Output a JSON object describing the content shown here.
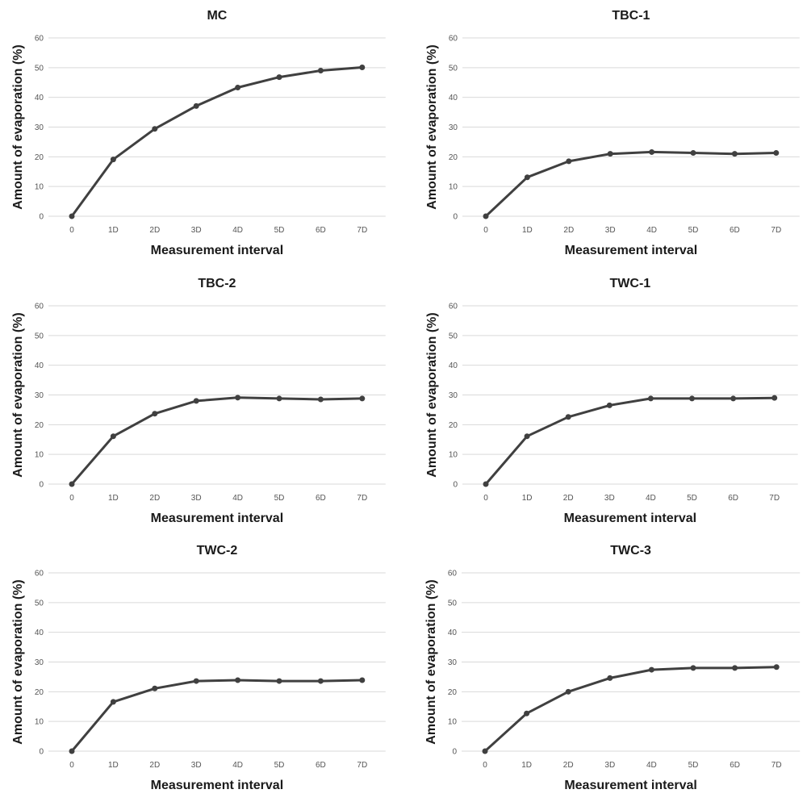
{
  "colors": {
    "series": "#404040",
    "grid": "#d9d9d9",
    "tick_text": "#555555",
    "title_text": "#1a1a1a"
  },
  "chart_data": [
    {
      "type": "line",
      "title": "MC",
      "xlabel": "Measurement interval",
      "ylabel": "Amount of evaporation (%)",
      "categories": [
        "0",
        "1D",
        "2D",
        "3D",
        "4D",
        "5D",
        "6D",
        "7D"
      ],
      "y_ticks": [
        "0",
        "10",
        "20",
        "30",
        "40",
        "50",
        "60"
      ],
      "ylim": [
        0,
        60
      ],
      "grid": true,
      "series": [
        {
          "values": [
            0,
            19.1,
            29.4,
            37.1,
            43.3,
            46.8,
            49.0,
            50.1
          ]
        }
      ]
    },
    {
      "type": "line",
      "title": "TBC-1",
      "xlabel": "Measurement interval",
      "ylabel": "Amount of evaporation (%)",
      "categories": [
        "0",
        "1D",
        "2D",
        "3D",
        "4D",
        "5D",
        "6D",
        "7D"
      ],
      "y_ticks": [
        "0",
        "10",
        "20",
        "30",
        "40",
        "50",
        "60"
      ],
      "ylim": [
        0,
        60
      ],
      "grid": true,
      "series": [
        {
          "values": [
            0,
            13.1,
            18.5,
            21.0,
            21.6,
            21.3,
            21.0,
            21.3
          ]
        }
      ]
    },
    {
      "type": "line",
      "title": "TBC-2",
      "xlabel": "Measurement interval",
      "ylabel": "Amount of evaporation (%)",
      "categories": [
        "0",
        "1D",
        "2D",
        "3D",
        "4D",
        "5D",
        "6D",
        "7D"
      ],
      "y_ticks": [
        "0",
        "10",
        "20",
        "30",
        "40",
        "50",
        "60"
      ],
      "ylim": [
        0,
        60
      ],
      "grid": true,
      "series": [
        {
          "values": [
            0,
            16.1,
            23.7,
            28.0,
            29.1,
            28.8,
            28.5,
            28.8
          ]
        }
      ]
    },
    {
      "type": "line",
      "title": "TWC-1",
      "xlabel": "Measurement interval",
      "ylabel": "Amount of evaporation (%)",
      "categories": [
        "0",
        "1D",
        "2D",
        "3D",
        "4D",
        "5D",
        "6D",
        "7D"
      ],
      "y_ticks": [
        "0",
        "10",
        "20",
        "30",
        "40",
        "50",
        "60"
      ],
      "ylim": [
        0,
        60
      ],
      "grid": true,
      "series": [
        {
          "values": [
            0,
            16.1,
            22.6,
            26.5,
            28.8,
            28.8,
            28.8,
            29.0
          ]
        }
      ]
    },
    {
      "type": "line",
      "title": "TWC-2",
      "xlabel": "Measurement interval",
      "ylabel": "Amount of evaporation (%)",
      "categories": [
        "0",
        "1D",
        "2D",
        "3D",
        "4D",
        "5D",
        "6D",
        "7D"
      ],
      "y_ticks": [
        "0",
        "10",
        "20",
        "30",
        "40",
        "50",
        "60"
      ],
      "ylim": [
        0,
        60
      ],
      "grid": true,
      "series": [
        {
          "values": [
            0,
            16.6,
            21.1,
            23.6,
            23.9,
            23.6,
            23.6,
            23.9
          ]
        }
      ]
    },
    {
      "type": "line",
      "title": "TWC-3",
      "xlabel": "Measurement interval",
      "ylabel": "Amount of evaporation (%)",
      "categories": [
        "0",
        "1D",
        "2D",
        "3D",
        "4D",
        "5D",
        "6D",
        "7D"
      ],
      "y_ticks": [
        "0",
        "10",
        "20",
        "30",
        "40",
        "50",
        "60"
      ],
      "ylim": [
        0,
        60
      ],
      "grid": true,
      "series": [
        {
          "values": [
            0,
            12.7,
            20.0,
            24.6,
            27.4,
            28.0,
            28.0,
            28.3
          ]
        }
      ]
    }
  ]
}
